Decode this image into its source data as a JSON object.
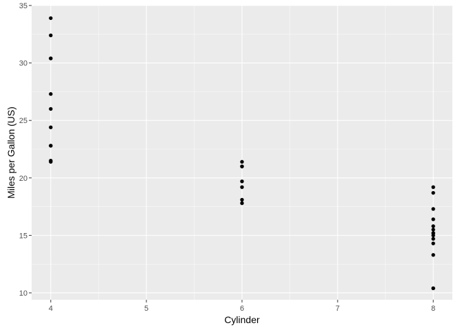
{
  "chart_data": {
    "type": "scatter",
    "title": "",
    "xlabel": "Cylinder",
    "ylabel": "Miles per Gallon (US)",
    "xlim": [
      3.8,
      8.2
    ],
    "ylim": [
      9.4,
      35.0
    ],
    "x_ticks": [
      4,
      5,
      6,
      7,
      8
    ],
    "y_ticks": [
      10,
      15,
      20,
      25,
      30,
      35
    ],
    "grid": true,
    "legend": "none",
    "colors": {
      "panel": "#ebebeb",
      "grid_major": "#ffffff",
      "point": "#000000",
      "tick_label": "#4d4d4d",
      "tick": "#333333"
    },
    "series": [
      {
        "x": [
          4,
          4,
          4,
          4,
          4,
          4,
          4,
          4,
          4,
          4,
          4,
          6,
          6,
          6,
          6,
          6,
          6,
          6,
          8,
          8,
          8,
          8,
          8,
          8,
          8,
          8,
          8,
          8,
          8,
          8,
          8,
          8
        ],
        "y": [
          33.9,
          32.4,
          30.4,
          27.3,
          26.0,
          24.4,
          22.8,
          22.8,
          21.5,
          21.4,
          30.4,
          21.4,
          21.0,
          21.0,
          19.7,
          19.2,
          18.1,
          17.8,
          19.2,
          18.7,
          17.3,
          16.4,
          15.8,
          15.5,
          15.2,
          15.0,
          14.7,
          14.3,
          13.3,
          10.4,
          10.4,
          15.2
        ]
      }
    ]
  }
}
